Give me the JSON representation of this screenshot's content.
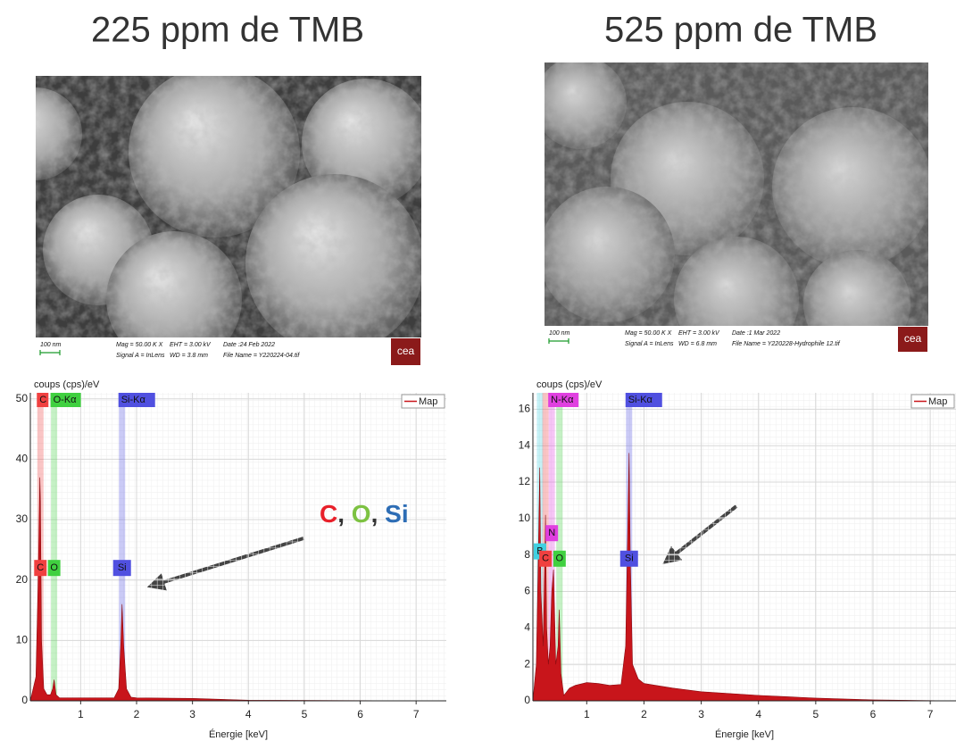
{
  "headers": [
    "225 ppm de TMB",
    "525 ppm de TMB"
  ],
  "images": [
    {
      "scale_bar": "100 nm",
      "info": [
        "Mag = 50.00 K X",
        "EHT = 3.00 kV",
        "Date :24 Feb 2022",
        "Signal A = InLens",
        "WD = 3.8 mm",
        "File Name = Y220224-04.tif"
      ],
      "logo": "cea"
    },
    {
      "scale_bar": "100 nm",
      "info": [
        "Mag = 50.00 K X",
        "EHT = 3.00 kV",
        "Date :1 Mar 2022",
        "Signal A = InLens",
        "WD = 6.8 mm",
        "File Name = Y220228-Hydrophile 12.tif"
      ],
      "logo": "cea"
    }
  ],
  "chart_data": [
    {
      "type": "area",
      "ylabel": "coups (cps)/eV",
      "xlabel": "Énergie [keV]",
      "legend": "Map",
      "color": "#c8151b",
      "grid": true,
      "x": [
        0.1,
        0.2,
        0.24,
        0.27,
        0.28,
        0.3,
        0.34,
        0.4,
        0.46,
        0.5,
        0.525,
        0.56,
        0.62,
        0.8,
        1.2,
        1.6,
        1.68,
        1.72,
        1.74,
        1.77,
        1.82,
        1.9,
        2.0,
        3.0,
        4.0,
        7.54
      ],
      "values": [
        0,
        4,
        20,
        37,
        33,
        10,
        2,
        1,
        1,
        2,
        3.5,
        1,
        0.5,
        0.5,
        0.5,
        0.5,
        2,
        10,
        16,
        9,
        2,
        0.6,
        0.5,
        0.4,
        0.1,
        0
      ],
      "xlim": [
        0.1,
        7.54
      ],
      "ylim": [
        0,
        51
      ],
      "xticks": [
        1,
        2,
        3,
        4,
        5,
        6,
        7
      ],
      "yticks": [
        0,
        10,
        20,
        30,
        40,
        50
      ],
      "markers": [
        {
          "label": "C",
          "x": 0.28,
          "color": "#f04040",
          "tag": "C",
          "tag_y": 22
        },
        {
          "label": "O-Kα",
          "x": 0.525,
          "color": "#40d040",
          "tag": "O",
          "tag_y": 22
        },
        {
          "label": "Si-Kα",
          "x": 1.74,
          "color": "#5050e0",
          "tag": "Si",
          "tag_y": 22
        }
      ],
      "annotation": {
        "parts": [
          "C",
          ", ",
          "O",
          ", ",
          "Si"
        ],
        "colors": [
          "#e8202a",
          "#333333",
          "#7dc242",
          "#333333",
          "#2d6db5"
        ]
      }
    },
    {
      "type": "area",
      "ylabel": "coups (cps)/eV",
      "xlabel": "Énergie [keV]",
      "legend": "Map",
      "color": "#c8151b",
      "grid": true,
      "x": [
        0.06,
        0.12,
        0.16,
        0.18,
        0.2,
        0.24,
        0.27,
        0.28,
        0.3,
        0.33,
        0.36,
        0.39,
        0.42,
        0.46,
        0.5,
        0.52,
        0.55,
        0.6,
        0.7,
        0.8,
        1.0,
        1.2,
        1.4,
        1.6,
        1.68,
        1.72,
        1.74,
        1.76,
        1.8,
        1.9,
        2.0,
        2.5,
        3.0,
        4.0,
        5.0,
        6.0,
        7.45
      ],
      "values": [
        0,
        2,
        9,
        12.8,
        6,
        3,
        8,
        10.2,
        4,
        2,
        3,
        6,
        7.2,
        2,
        3,
        5,
        1.5,
        0.3,
        0.7,
        0.85,
        1,
        0.95,
        0.85,
        0.9,
        3,
        10,
        13.6,
        8,
        2,
        1.2,
        0.95,
        0.7,
        0.5,
        0.3,
        0.15,
        0.05,
        0
      ],
      "xlim": [
        0.06,
        7.45
      ],
      "ylim": [
        0,
        16.9
      ],
      "xticks": [
        1,
        2,
        3,
        4,
        5,
        6,
        7
      ],
      "yticks": [
        0,
        2,
        4,
        6,
        8,
        10,
        12,
        14,
        16
      ],
      "markers": [
        {
          "x": 0.183,
          "color": "#40d0e0",
          "tag": "B",
          "tag_y": 8.2
        },
        {
          "x": 0.28,
          "color": "#f04040",
          "tag": "C",
          "tag_y": 7.8
        },
        {
          "label": "N-Kα",
          "x": 0.39,
          "color": "#e040e0",
          "tag": "N",
          "tag_y": 9.2
        },
        {
          "x": 0.525,
          "color": "#40d040",
          "tag": "O",
          "tag_y": 7.8
        },
        {
          "label": "Si-Kα",
          "x": 1.74,
          "color": "#5050e0",
          "tag": "Si",
          "tag_y": 7.8
        }
      ]
    }
  ]
}
